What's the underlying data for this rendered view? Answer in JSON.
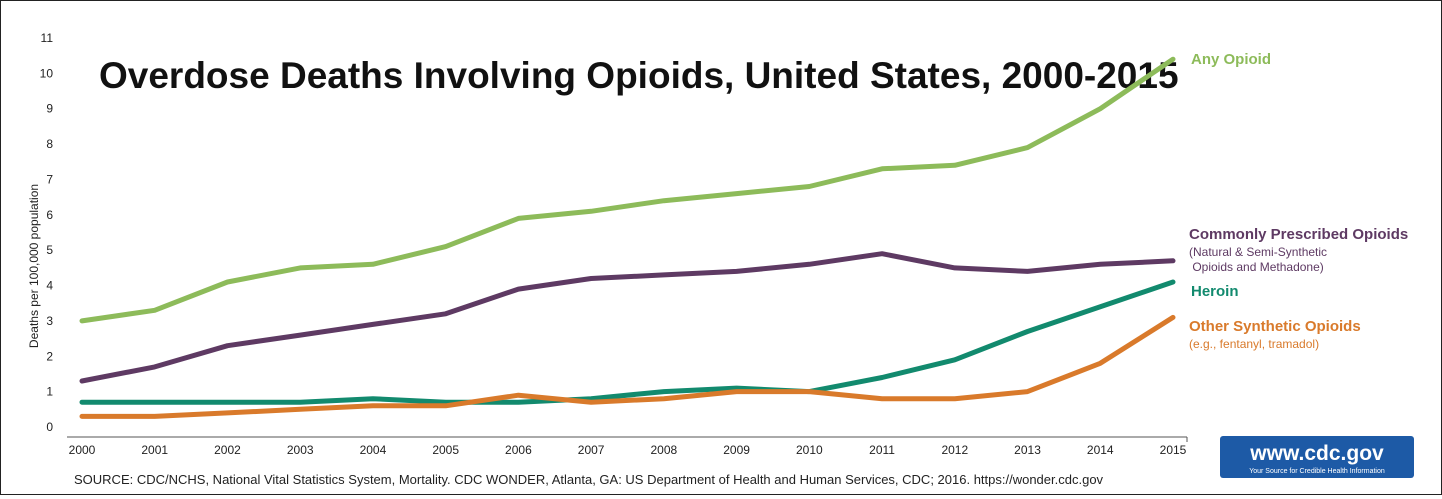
{
  "chart_data": {
    "type": "line",
    "title": "Overdose Deaths Involving Opioids, United States, 2000-2015",
    "ylabel": "Deaths per 100,000 population",
    "xlabel": "",
    "ylim": [
      0,
      11
    ],
    "y_ticks": [
      "0",
      "1",
      "2",
      "3",
      "4",
      "5",
      "6",
      "7",
      "8",
      "9",
      "10",
      "11"
    ],
    "x": [
      "2000",
      "2001",
      "2002",
      "2003",
      "2004",
      "2005",
      "2006",
      "2007",
      "2008",
      "2009",
      "2010",
      "2011",
      "2012",
      "2013",
      "2014",
      "2015"
    ],
    "grid": false,
    "legend": "direct labels at right end of lines",
    "series": [
      {
        "name": "Any Opioid",
        "sublabel": [],
        "color": "#8dbb5a",
        "values": [
          3.0,
          3.3,
          4.1,
          4.5,
          4.6,
          5.1,
          5.9,
          6.1,
          6.4,
          6.6,
          6.8,
          7.3,
          7.4,
          7.9,
          9.0,
          10.4
        ]
      },
      {
        "name": "Commonly Prescribed Opioids",
        "sublabel": [
          "(Natural & Semi-Synthetic",
          " Opioids and Methadone)"
        ],
        "color": "#5e3a63",
        "values": [
          1.3,
          1.7,
          2.3,
          2.6,
          2.9,
          3.2,
          3.9,
          4.2,
          4.3,
          4.4,
          4.6,
          4.9,
          4.5,
          4.4,
          4.6,
          4.7
        ]
      },
      {
        "name": "Heroin",
        "sublabel": [],
        "color": "#128a6e",
        "values": [
          0.7,
          0.7,
          0.7,
          0.7,
          0.8,
          0.7,
          0.7,
          0.8,
          1.0,
          1.1,
          1.0,
          1.4,
          1.9,
          2.7,
          3.4,
          4.1
        ]
      },
      {
        "name": "Other Synthetic Opioids",
        "sublabel": [
          "(e.g., fentanyl, tramadol)"
        ],
        "color": "#d97a2b",
        "values": [
          0.3,
          0.3,
          0.4,
          0.5,
          0.6,
          0.6,
          0.9,
          0.7,
          0.8,
          1.0,
          1.0,
          0.8,
          0.8,
          1.0,
          1.8,
          3.1
        ]
      }
    ]
  },
  "footer": {
    "source": "SOURCE: CDC/NCHS, National Vital Statistics System, Mortality. CDC WONDER, Atlanta, GA: US Department of Health and Human Services, CDC; 2016. https://wonder.cdc.gov"
  },
  "logo": {
    "url": "www.cdc.gov",
    "tagline": "Your Source for Credible Health Information",
    "color": "#1d5aa6"
  }
}
